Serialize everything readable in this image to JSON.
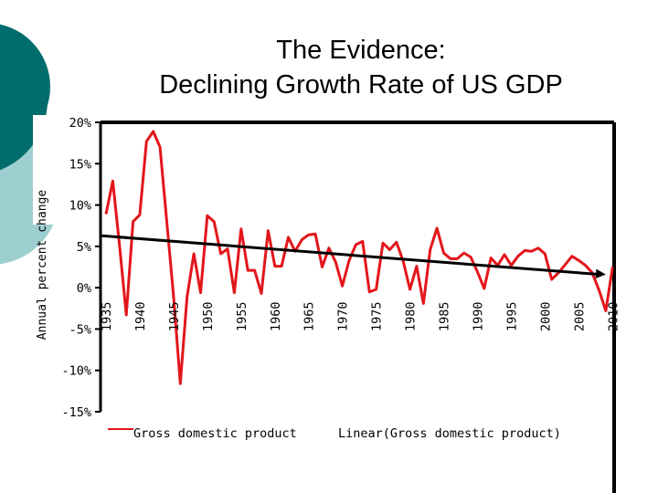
{
  "slide": {
    "title_line1": "The Evidence:",
    "title_line2": "Declining Growth Rate of US GDP",
    "colors": {
      "dark_teal": "#006c6c",
      "light_teal": "#9ecfd0"
    }
  },
  "chart_data": {
    "type": "line",
    "ylabel": "Annual percent change",
    "xlabel": "",
    "ylim": [
      -15,
      20
    ],
    "yticks": [
      -15,
      -10,
      -5,
      0,
      5,
      10,
      15,
      20
    ],
    "ytick_labels": [
      "-15%",
      "-10%",
      "-5%",
      "0%",
      "5%",
      "10%",
      "15%",
      "20%"
    ],
    "xlim": [
      1935,
      2010
    ],
    "xticks": [
      1935,
      1940,
      1945,
      1950,
      1955,
      1960,
      1965,
      1970,
      1975,
      1980,
      1985,
      1990,
      1995,
      2000,
      2005,
      2010
    ],
    "xtick_labels": [
      "1935",
      "1940",
      "1945",
      "1950",
      "1955",
      "1960",
      "1965",
      "1970",
      "1975",
      "1980",
      "1985",
      "1990",
      "1995",
      "2000",
      "2005",
      "2010"
    ],
    "grid": false,
    "legend_placement": "bottom",
    "x": [
      1935,
      1936,
      1937,
      1938,
      1939,
      1940,
      1941,
      1942,
      1943,
      1944,
      1945,
      1946,
      1947,
      1948,
      1949,
      1950,
      1951,
      1952,
      1953,
      1954,
      1955,
      1956,
      1957,
      1958,
      1959,
      1960,
      1961,
      1962,
      1963,
      1964,
      1965,
      1966,
      1967,
      1968,
      1969,
      1970,
      1971,
      1972,
      1973,
      1974,
      1975,
      1976,
      1977,
      1978,
      1979,
      1980,
      1981,
      1982,
      1983,
      1984,
      1985,
      1986,
      1987,
      1988,
      1989,
      1990,
      1991,
      1992,
      1993,
      1994,
      1995,
      1996,
      1997,
      1998,
      1999,
      2000,
      2001,
      2002,
      2003,
      2004,
      2005,
      2006,
      2007,
      2008,
      2009,
      2010
    ],
    "series": [
      {
        "name": "Gross domestic product",
        "color": "#e3161b",
        "values": [
          8.9,
          12.9,
          5.1,
          -3.3,
          8.0,
          8.8,
          17.7,
          18.9,
          17.0,
          8.0,
          -1.0,
          -11.6,
          -1.1,
          4.1,
          -0.6,
          8.7,
          8.0,
          4.1,
          4.7,
          -0.6,
          7.1,
          2.1,
          2.1,
          -0.7,
          6.9,
          2.6,
          2.6,
          6.1,
          4.4,
          5.8,
          6.4,
          6.5,
          2.5,
          4.8,
          3.1,
          0.2,
          3.3,
          5.2,
          5.6,
          -0.5,
          -0.2,
          5.4,
          4.6,
          5.5,
          3.2,
          -0.2,
          2.6,
          -1.9,
          4.6,
          7.2,
          4.2,
          3.5,
          3.5,
          4.2,
          3.7,
          1.9,
          -0.1,
          3.6,
          2.7,
          4.0,
          2.7,
          3.8,
          4.5,
          4.4,
          4.8,
          4.1,
          1.0,
          1.8,
          2.8,
          3.8,
          3.3,
          2.7,
          1.8,
          -0.3,
          -2.8,
          2.5
        ]
      },
      {
        "name": "Linear(Gross domestic product)",
        "color": "#000000",
        "trendline": "linear"
      }
    ]
  }
}
